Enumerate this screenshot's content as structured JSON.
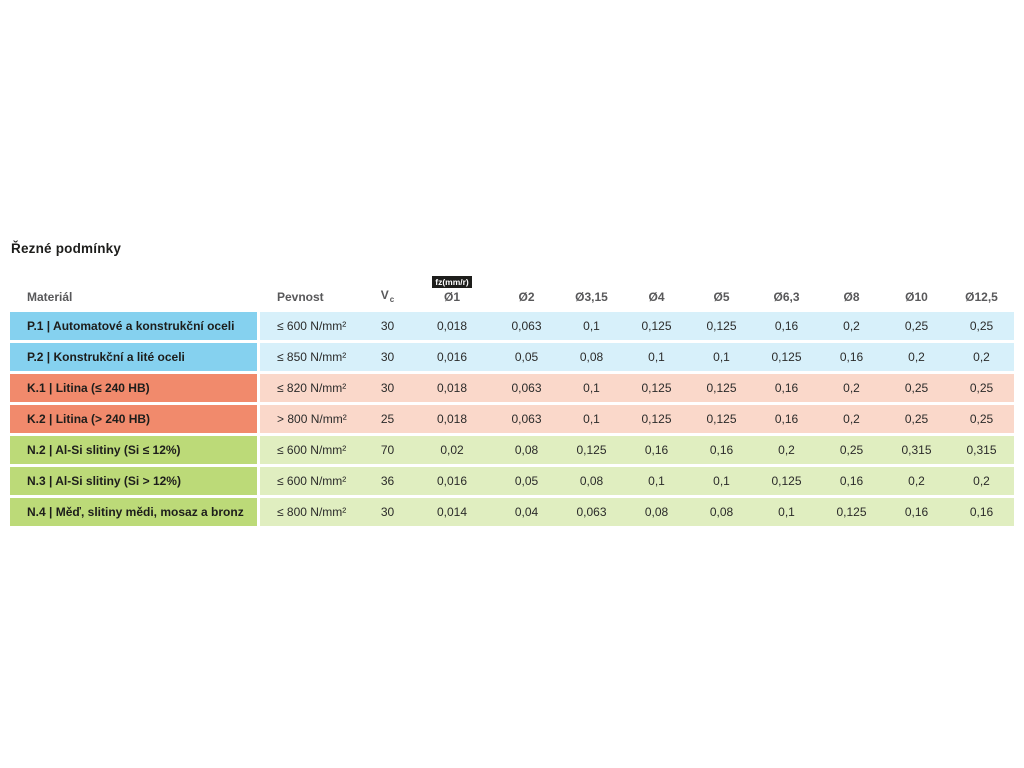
{
  "page": {
    "title": "Řezné podmínky"
  },
  "colors": {
    "group_P": {
      "label_bg": "#85D1EF",
      "row_bg": "#D7F0FA"
    },
    "group_K": {
      "label_bg": "#F18A6C",
      "row_bg": "#FAD8CA"
    },
    "group_N": {
      "label_bg": "#BCDA78",
      "row_bg": "#E0EEC0"
    },
    "badge_bg": "#1D1D1B",
    "badge_fg": "#FFFFFF",
    "title_ink": "#1D1D1B",
    "header_ink": "#58585A",
    "value_ink": "#2B2B2A"
  },
  "table": {
    "header": {
      "material": "Materiál",
      "strength": "Pevnost",
      "vc_main": "V",
      "vc_sub": "c",
      "fz_badge": "fz(mm/r)",
      "diameters": [
        "Ø1",
        "Ø2",
        "Ø3,15",
        "Ø4",
        "Ø5",
        "Ø6,3",
        "Ø8",
        "Ø10",
        "Ø12,5"
      ]
    },
    "rows": [
      {
        "group": "P",
        "material": "P.1 | Automatové a konstrukční oceli",
        "strength": "≤ 600 N/mm²",
        "vc": "30",
        "values": [
          "0,018",
          "0,063",
          "0,1",
          "0,125",
          "0,125",
          "0,16",
          "0,2",
          "0,25",
          "0,25"
        ]
      },
      {
        "group": "P",
        "material": "P.2 | Konstrukční a lité oceli",
        "strength": "≤ 850 N/mm²",
        "vc": "30",
        "values": [
          "0,016",
          "0,05",
          "0,08",
          "0,1",
          "0,1",
          "0,125",
          "0,16",
          "0,2",
          "0,2"
        ]
      },
      {
        "group": "K",
        "material": "K.1 | Litina (≤ 240 HB)",
        "strength": "≤ 820 N/mm²",
        "vc": "30",
        "values": [
          "0,018",
          "0,063",
          "0,1",
          "0,125",
          "0,125",
          "0,16",
          "0,2",
          "0,25",
          "0,25"
        ]
      },
      {
        "group": "K",
        "material": "K.2 | Litina (> 240 HB)",
        "strength": "> 800 N/mm²",
        "vc": "25",
        "values": [
          "0,018",
          "0,063",
          "0,1",
          "0,125",
          "0,125",
          "0,16",
          "0,2",
          "0,25",
          "0,25"
        ]
      },
      {
        "group": "N",
        "material": "N.2 | Al-Si slitiny (Si ≤ 12%)",
        "strength": "≤ 600 N/mm²",
        "vc": "70",
        "values": [
          "0,02",
          "0,08",
          "0,125",
          "0,16",
          "0,16",
          "0,2",
          "0,25",
          "0,315",
          "0,315"
        ]
      },
      {
        "group": "N",
        "material": "N.3 | Al-Si slitiny (Si > 12%)",
        "strength": "≤ 600 N/mm²",
        "vc": "36",
        "values": [
          "0,016",
          "0,05",
          "0,08",
          "0,1",
          "0,1",
          "0,125",
          "0,16",
          "0,2",
          "0,2"
        ]
      },
      {
        "group": "N",
        "material": "N.4 | Měď, slitiny mědi, mosaz a bronz",
        "strength": "≤ 800 N/mm²",
        "vc": "30",
        "values": [
          "0,014",
          "0,04",
          "0,063",
          "0,08",
          "0,08",
          "0,1",
          "0,125",
          "0,16",
          "0,16"
        ]
      }
    ]
  }
}
